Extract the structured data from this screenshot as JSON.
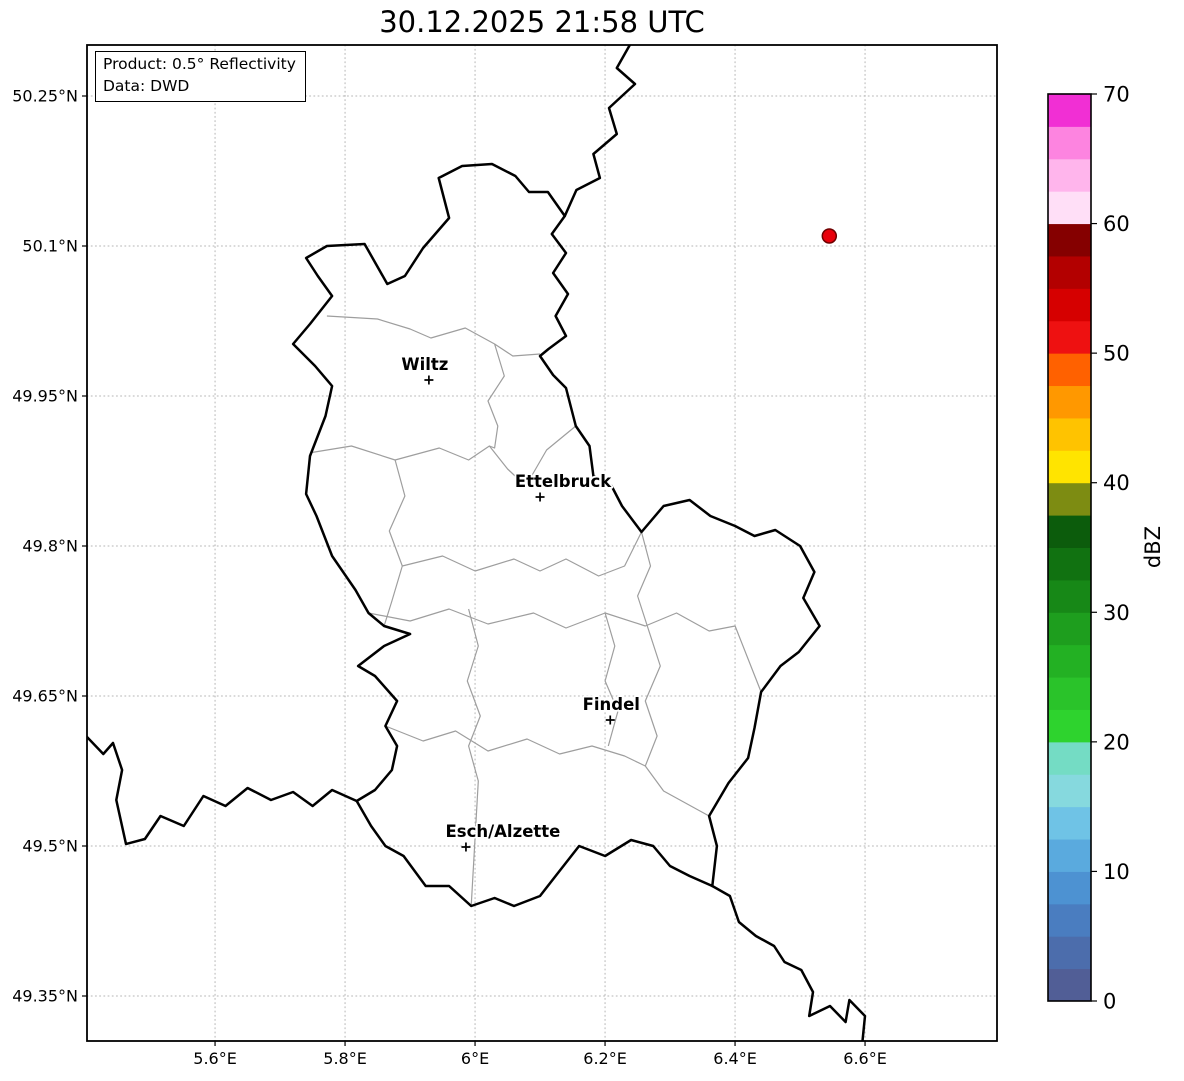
{
  "title": "30.12.2025 21:58 UTC",
  "info_box": {
    "line1": "Product: 0.5° Reflectivity",
    "line2": "Data: DWD"
  },
  "colors": {
    "border": "#000000",
    "canton": "#9e9e9e",
    "grid": "#b5b5b5",
    "echo_fill": "#e8000b",
    "echo_edge": "#6e0000"
  },
  "chart_data": {
    "type": "map",
    "title": "30.12.2025 21:58 UTC",
    "product": "0.5° Reflectivity",
    "data_source": "DWD",
    "grid": true,
    "projection": {
      "lon_min": 5.403,
      "lon_max": 6.803,
      "lat_min": 49.305,
      "lat_max": 50.301
    },
    "x_ticks": [
      {
        "value": 5.6,
        "label": "5.6°E"
      },
      {
        "value": 5.8,
        "label": "5.8°E"
      },
      {
        "value": 6.0,
        "label": "6°E"
      },
      {
        "value": 6.2,
        "label": "6.2°E"
      },
      {
        "value": 6.4,
        "label": "6.4°E"
      },
      {
        "value": 6.6,
        "label": "6.6°E"
      }
    ],
    "y_ticks": [
      {
        "value": 50.25,
        "label": "50.25°N"
      },
      {
        "value": 50.1,
        "label": "50.1°N"
      },
      {
        "value": 49.95,
        "label": "49.95°N"
      },
      {
        "value": 49.8,
        "label": "49.8°N"
      },
      {
        "value": 49.65,
        "label": "49.65°N"
      },
      {
        "value": 49.5,
        "label": "49.5°N"
      },
      {
        "value": 49.35,
        "label": "49.35°N"
      }
    ],
    "cities": [
      {
        "name": "Wiltz",
        "lon": 5.929,
        "lat": 49.966,
        "label_dx": -4
      },
      {
        "name": "Ettelbruck",
        "lon": 6.1,
        "lat": 49.849,
        "label_dx": 23
      },
      {
        "name": "Findel",
        "lon": 6.208,
        "lat": 49.626,
        "label_dx": 1
      },
      {
        "name": "Esch/Alzette",
        "lon": 5.986,
        "lat": 49.499,
        "label_dx": 37
      }
    ],
    "radar_echoes": [
      {
        "lon": 6.545,
        "lat": 50.11,
        "dbz": 50
      }
    ],
    "colorbar": {
      "unit": "dBZ",
      "min": 0,
      "max": 70,
      "step": 2.5,
      "tick_values": [
        0,
        10,
        20,
        30,
        40,
        50,
        60,
        70
      ],
      "colors": [
        "#515e96",
        "#4c6dac",
        "#4a7dc0",
        "#4d92d2",
        "#5aaade",
        "#6fc3e6",
        "#86d9de",
        "#74dcc4",
        "#2ed32e",
        "#2ac32a",
        "#23b123",
        "#1e9e1e",
        "#178817",
        "#117211",
        "#0c5c0c",
        "#7d8c12",
        "#ffe400",
        "#ffc300",
        "#ff9800",
        "#ff6100",
        "#ee1111",
        "#d60000",
        "#b30000",
        "#850000",
        "#ffdff7",
        "#ffb5ec",
        "#fd84e0",
        "#f12fd4"
      ]
    },
    "borders": {
      "country_outline": [
        [
          6.026,
          50.182
        ],
        [
          6.062,
          50.17
        ],
        [
          6.083,
          50.154
        ],
        [
          6.112,
          50.154
        ],
        [
          6.138,
          50.13
        ],
        [
          6.118,
          50.112
        ],
        [
          6.14,
          50.093
        ],
        [
          6.12,
          50.073
        ],
        [
          6.143,
          50.052
        ],
        [
          6.124,
          50.03
        ],
        [
          6.14,
          50.01
        ],
        [
          6.113,
          49.997
        ],
        [
          6.1,
          49.99
        ],
        [
          6.12,
          49.971
        ],
        [
          6.14,
          49.958
        ],
        [
          6.155,
          49.92
        ],
        [
          6.176,
          49.9
        ],
        [
          6.182,
          49.87
        ],
        [
          6.21,
          49.86
        ],
        [
          6.226,
          49.84
        ],
        [
          6.256,
          49.814
        ],
        [
          6.29,
          49.84
        ],
        [
          6.33,
          49.846
        ],
        [
          6.362,
          49.83
        ],
        [
          6.4,
          49.82
        ],
        [
          6.43,
          49.81
        ],
        [
          6.462,
          49.816
        ],
        [
          6.5,
          49.8
        ],
        [
          6.522,
          49.774
        ],
        [
          6.505,
          49.748
        ],
        [
          6.53,
          49.72
        ],
        [
          6.498,
          49.694
        ],
        [
          6.47,
          49.68
        ],
        [
          6.44,
          49.654
        ],
        [
          6.43,
          49.618
        ],
        [
          6.42,
          49.588
        ],
        [
          6.39,
          49.563
        ],
        [
          6.36,
          49.53
        ],
        [
          6.372,
          49.5
        ],
        [
          6.365,
          49.46
        ],
        [
          6.33,
          49.47
        ],
        [
          6.3,
          49.48
        ],
        [
          6.274,
          49.5
        ],
        [
          6.24,
          49.506
        ],
        [
          6.2,
          49.49
        ],
        [
          6.16,
          49.5
        ],
        [
          6.124,
          49.47
        ],
        [
          6.1,
          49.45
        ],
        [
          6.06,
          49.44
        ],
        [
          6.03,
          49.448
        ],
        [
          5.994,
          49.44
        ],
        [
          5.96,
          49.46
        ],
        [
          5.924,
          49.46
        ],
        [
          5.89,
          49.49
        ],
        [
          5.862,
          49.5
        ],
        [
          5.84,
          49.52
        ],
        [
          5.818,
          49.545
        ],
        [
          5.846,
          49.556
        ],
        [
          5.872,
          49.576
        ],
        [
          5.88,
          49.6
        ],
        [
          5.862,
          49.62
        ],
        [
          5.88,
          49.645
        ],
        [
          5.846,
          49.67
        ],
        [
          5.82,
          49.68
        ],
        [
          5.86,
          49.7
        ],
        [
          5.9,
          49.712
        ],
        [
          5.86,
          49.72
        ],
        [
          5.836,
          49.733
        ],
        [
          5.816,
          49.756
        ],
        [
          5.78,
          49.79
        ],
        [
          5.756,
          49.83
        ],
        [
          5.74,
          49.852
        ],
        [
          5.746,
          49.89
        ],
        [
          5.77,
          49.93
        ],
        [
          5.78,
          49.96
        ],
        [
          5.754,
          49.98
        ],
        [
          5.72,
          50.002
        ],
        [
          5.746,
          50.022
        ],
        [
          5.78,
          50.05
        ],
        [
          5.758,
          50.07
        ],
        [
          5.74,
          50.088
        ],
        [
          5.772,
          50.1
        ],
        [
          5.83,
          50.102
        ],
        [
          5.865,
          50.062
        ],
        [
          5.892,
          50.07
        ],
        [
          5.92,
          50.098
        ],
        [
          5.96,
          50.128
        ],
        [
          5.944,
          50.168
        ],
        [
          5.98,
          50.18
        ]
      ],
      "be_de_border": [
        [
          6.238,
          50.301
        ],
        [
          6.218,
          50.278
        ],
        [
          6.246,
          50.262
        ],
        [
          6.206,
          50.238
        ],
        [
          6.218,
          50.212
        ],
        [
          6.182,
          50.192
        ],
        [
          6.192,
          50.168
        ],
        [
          6.156,
          50.156
        ],
        [
          6.138,
          50.13
        ]
      ],
      "fr_be_border": [
        [
          5.403,
          49.609
        ],
        [
          5.428,
          49.592
        ],
        [
          5.443,
          49.603
        ],
        [
          5.457,
          49.576
        ],
        [
          5.448,
          49.546
        ],
        [
          5.463,
          49.502
        ],
        [
          5.492,
          49.507
        ],
        [
          5.516,
          49.53
        ],
        [
          5.552,
          49.52
        ],
        [
          5.582,
          49.55
        ],
        [
          5.616,
          49.54
        ],
        [
          5.65,
          49.558
        ],
        [
          5.686,
          49.546
        ],
        [
          5.72,
          49.554
        ],
        [
          5.75,
          49.54
        ],
        [
          5.78,
          49.556
        ],
        [
          5.818,
          49.545
        ]
      ],
      "fr_de_border": [
        [
          6.365,
          49.46
        ],
        [
          6.392,
          49.45
        ],
        [
          6.406,
          49.424
        ],
        [
          6.432,
          49.41
        ],
        [
          6.46,
          49.4
        ],
        [
          6.476,
          49.384
        ],
        [
          6.502,
          49.376
        ],
        [
          6.52,
          49.354
        ],
        [
          6.514,
          49.33
        ],
        [
          6.546,
          49.34
        ],
        [
          6.57,
          49.324
        ],
        [
          6.576,
          49.346
        ],
        [
          6.6,
          49.33
        ],
        [
          6.596,
          49.305
        ]
      ],
      "cantons": [
        [
          [
            5.772,
            50.03
          ],
          [
            5.85,
            50.027
          ],
          [
            5.9,
            50.017
          ],
          [
            5.932,
            50.008
          ],
          [
            5.985,
            50.018
          ],
          [
            6.03,
            50.002
          ],
          [
            6.058,
            49.99
          ],
          [
            6.1,
            49.992
          ]
        ],
        [
          [
            5.744,
            49.893
          ],
          [
            5.81,
            49.9
          ],
          [
            5.877,
            49.886
          ],
          [
            5.945,
            49.898
          ],
          [
            5.99,
            49.886
          ],
          [
            6.022,
            49.9
          ],
          [
            6.05,
            49.877
          ],
          [
            6.078,
            49.86
          ],
          [
            6.11,
            49.896
          ],
          [
            6.155,
            49.92
          ]
        ],
        [
          [
            6.03,
            50.002
          ],
          [
            6.045,
            49.97
          ],
          [
            6.02,
            49.945
          ],
          [
            6.035,
            49.92
          ],
          [
            6.03,
            49.898
          ],
          [
            6.022,
            49.9
          ]
        ],
        [
          [
            5.877,
            49.886
          ],
          [
            5.892,
            49.85
          ],
          [
            5.868,
            49.815
          ],
          [
            5.888,
            49.78
          ],
          [
            5.872,
            49.745
          ],
          [
            5.86,
            49.72
          ]
        ],
        [
          [
            5.888,
            49.78
          ],
          [
            5.95,
            49.79
          ],
          [
            6.0,
            49.775
          ],
          [
            6.06,
            49.787
          ],
          [
            6.1,
            49.775
          ],
          [
            6.14,
            49.787
          ],
          [
            6.19,
            49.77
          ],
          [
            6.23,
            49.78
          ],
          [
            6.256,
            49.814
          ]
        ],
        [
          [
            5.836,
            49.733
          ],
          [
            5.9,
            49.725
          ],
          [
            5.96,
            49.737
          ],
          [
            6.02,
            49.722
          ],
          [
            6.09,
            49.733
          ],
          [
            6.14,
            49.718
          ],
          [
            6.2,
            49.733
          ],
          [
            6.262,
            49.72
          ],
          [
            6.31,
            49.733
          ],
          [
            6.36,
            49.715
          ],
          [
            6.4,
            49.72
          ],
          [
            6.44,
            49.654
          ]
        ],
        [
          [
            6.256,
            49.814
          ],
          [
            6.27,
            49.78
          ],
          [
            6.25,
            49.75
          ],
          [
            6.265,
            49.72
          ],
          [
            6.285,
            49.68
          ],
          [
            6.262,
            49.645
          ],
          [
            6.28,
            49.61
          ],
          [
            6.262,
            49.58
          ],
          [
            6.29,
            49.555
          ],
          [
            6.36,
            49.53
          ]
        ],
        [
          [
            5.99,
            49.737
          ],
          [
            6.005,
            49.7
          ],
          [
            5.988,
            49.665
          ],
          [
            6.008,
            49.63
          ],
          [
            5.99,
            49.6
          ],
          [
            6.005,
            49.565
          ],
          [
            5.994,
            49.44
          ]
        ],
        [
          [
            5.862,
            49.62
          ],
          [
            5.92,
            49.605
          ],
          [
            5.97,
            49.615
          ],
          [
            6.02,
            49.595
          ],
          [
            6.08,
            49.607
          ],
          [
            6.13,
            49.592
          ],
          [
            6.18,
            49.6
          ],
          [
            6.23,
            49.59
          ],
          [
            6.262,
            49.58
          ]
        ],
        [
          [
            6.2,
            49.733
          ],
          [
            6.215,
            49.7
          ],
          [
            6.2,
            49.665
          ],
          [
            6.22,
            49.635
          ],
          [
            6.205,
            49.6
          ]
        ]
      ]
    }
  }
}
